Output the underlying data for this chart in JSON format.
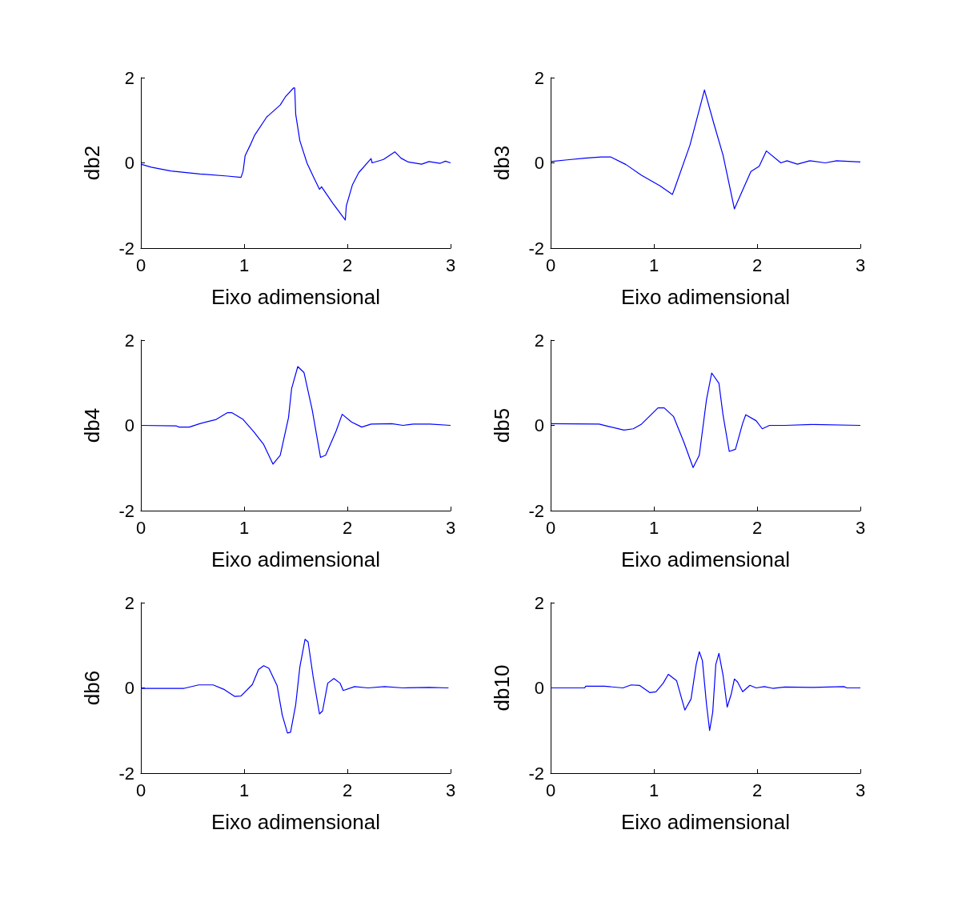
{
  "chart_data": [
    {
      "type": "line",
      "xlabel": "Eixo adimensional",
      "ylabel": "db2",
      "color": "#0000ff",
      "xlim": [
        0,
        3
      ],
      "ylim": [
        -2,
        2
      ],
      "xticks": [
        0,
        1,
        2,
        3
      ],
      "yticks": [
        -2,
        0,
        2
      ],
      "x": [
        0,
        0.1,
        0.29,
        0.57,
        0.84,
        0.97,
        0.99,
        1.01,
        1.06,
        1.1,
        1.22,
        1.24,
        1.35,
        1.4,
        1.48,
        1.49,
        1.5,
        1.54,
        1.61,
        1.67,
        1.73,
        1.75,
        1.86,
        1.98,
        1.99,
        2.05,
        2.11,
        2.23,
        2.24,
        2.35,
        2.46,
        2.52,
        2.59,
        2.72,
        2.79,
        2.9,
        2.95,
        3
      ],
      "values": [
        -0.03,
        -0.1,
        -0.19,
        -0.26,
        -0.31,
        -0.34,
        -0.2,
        0.17,
        0.42,
        0.64,
        1.08,
        1.12,
        1.36,
        1.55,
        1.76,
        1.76,
        1.14,
        0.52,
        -0.01,
        -0.32,
        -0.62,
        -0.56,
        -0.95,
        -1.34,
        -1.01,
        -0.51,
        -0.23,
        0.1,
        0,
        0.08,
        0.26,
        0.11,
        0.02,
        -0.03,
        0.03,
        -0.01,
        0.04,
        0
      ]
    },
    {
      "type": "line",
      "xlabel": "Eixo adimensional",
      "ylabel": "db3",
      "color": "#0000ff",
      "xlim": [
        0,
        3
      ],
      "ylim": [
        -2,
        2
      ],
      "xticks": [
        0,
        1,
        2,
        3
      ],
      "yticks": [
        -2,
        0,
        2
      ],
      "x": [
        0,
        0.16,
        0.33,
        0.49,
        0.58,
        0.73,
        0.88,
        1.06,
        1.18,
        1.2,
        1.35,
        1.49,
        1.58,
        1.67,
        1.78,
        1.86,
        1.94,
        2.02,
        2.09,
        2.23,
        2.29,
        2.39,
        2.51,
        2.66,
        2.77,
        3
      ],
      "values": [
        0.03,
        0.07,
        0.11,
        0.14,
        0.14,
        -0.04,
        -0.29,
        -0.54,
        -0.74,
        -0.61,
        0.42,
        1.71,
        0.93,
        0.18,
        -1.08,
        -0.64,
        -0.2,
        -0.08,
        0.28,
        0,
        0.05,
        -0.03,
        0.05,
        0,
        0.05,
        0.02
      ]
    },
    {
      "type": "line",
      "xlabel": "Eixo adimensional",
      "ylabel": "db4",
      "color": "#0000ff",
      "xlim": [
        0,
        3
      ],
      "ylim": [
        -2,
        2
      ],
      "xticks": [
        0,
        1,
        2,
        3
      ],
      "yticks": [
        -2,
        0,
        2
      ],
      "x": [
        0,
        0.34,
        0.37,
        0.47,
        0.57,
        0.73,
        0.84,
        0.88,
        0.99,
        1.09,
        1.19,
        1.28,
        1.35,
        1.43,
        1.46,
        1.52,
        1.58,
        1.66,
        1.74,
        1.79,
        1.89,
        1.95,
        2.04,
        2.14,
        2.23,
        2.43,
        2.54,
        2.64,
        2.8,
        3
      ],
      "values": [
        0,
        -0.01,
        -0.04,
        -0.04,
        0.04,
        0.14,
        0.3,
        0.3,
        0.14,
        -0.14,
        -0.45,
        -0.91,
        -0.7,
        0.18,
        0.86,
        1.38,
        1.24,
        0.36,
        -0.75,
        -0.7,
        -0.14,
        0.26,
        0.08,
        -0.04,
        0.03,
        0.04,
        0,
        0.03,
        0.03,
        0
      ]
    },
    {
      "type": "line",
      "xlabel": "Eixo adimensional",
      "ylabel": "db5",
      "color": "#0000ff",
      "xlim": [
        0,
        3
      ],
      "ylim": [
        -2,
        2
      ],
      "xticks": [
        0,
        1,
        2,
        3
      ],
      "yticks": [
        -2,
        0,
        2
      ],
      "x": [
        0,
        0.47,
        0.57,
        0.71,
        0.8,
        0.88,
        1.04,
        1.1,
        1.19,
        1.29,
        1.38,
        1.44,
        1.51,
        1.56,
        1.63,
        1.67,
        1.73,
        1.79,
        1.86,
        1.89,
        1.99,
        2.05,
        2.12,
        2.27,
        2.53,
        3
      ],
      "values": [
        0.04,
        0.03,
        -0.03,
        -0.11,
        -0.08,
        0.03,
        0.41,
        0.41,
        0.21,
        -0.39,
        -0.99,
        -0.7,
        0.61,
        1.23,
        0.99,
        0.24,
        -0.61,
        -0.56,
        0.05,
        0.25,
        0.11,
        -0.08,
        0,
        0,
        0.02,
        0
      ]
    },
    {
      "type": "line",
      "xlabel": "Eixo adimensional",
      "ylabel": "db6",
      "color": "#0000ff",
      "xlim": [
        0,
        3
      ],
      "ylim": [
        -2,
        2
      ],
      "xticks": [
        0,
        1,
        2,
        3
      ],
      "yticks": [
        -2,
        0,
        2
      ],
      "x": [
        0,
        0.42,
        0.56,
        0.7,
        0.81,
        0.91,
        0.97,
        1.08,
        1.14,
        1.19,
        1.24,
        1.32,
        1.37,
        1.42,
        1.45,
        1.5,
        1.54,
        1.59,
        1.62,
        1.67,
        1.73,
        1.76,
        1.81,
        1.87,
        1.93,
        1.96,
        2.07,
        2.2,
        2.36,
        2.54,
        2.79,
        2.98
      ],
      "values": [
        -0.01,
        -0.01,
        0.07,
        0.07,
        -0.04,
        -0.2,
        -0.19,
        0.08,
        0.43,
        0.52,
        0.46,
        0.05,
        -0.64,
        -1.06,
        -1.04,
        -0.39,
        0.49,
        1.14,
        1.08,
        0.24,
        -0.61,
        -0.54,
        0.11,
        0.22,
        0.11,
        -0.06,
        0.03,
        0,
        0.03,
        0,
        0.01,
        0
      ]
    },
    {
      "type": "line",
      "xlabel": "Eixo adimensional",
      "ylabel": "db10",
      "color": "#0000ff",
      "xlim": [
        0,
        3
      ],
      "ylim": [
        -2,
        2
      ],
      "xticks": [
        0,
        1,
        2,
        3
      ],
      "yticks": [
        -2,
        0,
        2
      ],
      "x": [
        0,
        0.33,
        0.34,
        0.52,
        0.7,
        0.78,
        0.86,
        0.96,
        1.02,
        1.09,
        1.14,
        1.22,
        1.3,
        1.36,
        1.41,
        1.44,
        1.47,
        1.51,
        1.54,
        1.57,
        1.6,
        1.63,
        1.67,
        1.71,
        1.75,
        1.78,
        1.81,
        1.86,
        1.93,
        1.99,
        2.07,
        2.15,
        2.27,
        2.53,
        2.84,
        2.87,
        3
      ],
      "values": [
        0,
        0,
        0.04,
        0.04,
        0,
        0.07,
        0.06,
        -0.11,
        -0.09,
        0.11,
        0.32,
        0.17,
        -0.52,
        -0.26,
        0.55,
        0.85,
        0.64,
        -0.39,
        -1,
        -0.57,
        0.55,
        0.81,
        0.3,
        -0.45,
        -0.14,
        0.21,
        0.14,
        -0.09,
        0.06,
        0,
        0.03,
        -0.01,
        0.02,
        0.01,
        0.03,
        0,
        0
      ]
    }
  ]
}
